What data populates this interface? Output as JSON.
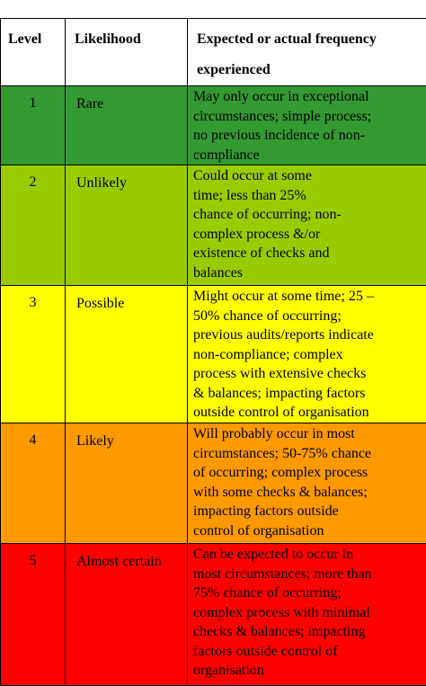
{
  "table": {
    "header": [
      "Level",
      "Likelihood",
      "Expected or actual frequency experienced"
    ],
    "rows": [
      {
        "level": "1",
        "likelihood": "Rare",
        "description": [
          "May only occur in exceptional",
          "circumstances; simple process;",
          "no previous incidence of non-",
          "compliance"
        ]
      },
      {
        "level": "2",
        "likelihood": "Unlikely",
        "description": [
          "Could occur at some",
          "time; less than 25%",
          "chance of occurring; non-",
          "complex process &/or",
          "existence of checks and",
          "balances"
        ]
      },
      {
        "level": "3",
        "likelihood": "Possible",
        "description": [
          "Might occur at some time; 25 –",
          "50% chance of occurring;",
          "previous audits/reports indicate",
          "non-compliance; complex",
          "process with extensive checks",
          "& balances; impacting factors",
          "outside control of organisation"
        ]
      },
      {
        "level": "4",
        "likelihood": "Likely",
        "description": [
          "Will probably occur in most",
          "circumstances; 50-75% chance",
          "of occurring; complex process",
          "with some checks & balances;",
          "impacting factors outside",
          "control of organisation"
        ]
      },
      {
        "level": "5",
        "likelihood": "Almost certain",
        "description": [
          "Can be expected to occur in",
          "most circumstances; more than",
          "75% chance of occurring;",
          "complex process with minimal",
          "checks & balances; impacting",
          "factors outside control of",
          "organisation"
        ]
      }
    ]
  }
}
